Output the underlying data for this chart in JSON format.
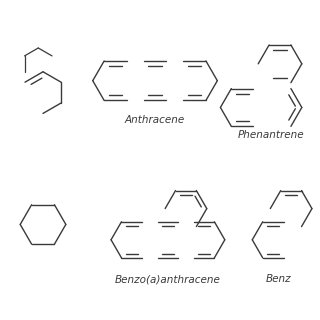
{
  "background_color": "#ffffff",
  "line_color": "#3a3a3a",
  "text_color": "#3a3a3a",
  "line_width": 1.0,
  "labels": {
    "anthracene": "Anthracene",
    "phenantrene": "Phenantrene",
    "benzo_a_anthracene": "Benzo(a)anthracene",
    "benz": "Benz"
  },
  "label_fontsize": 7.5
}
